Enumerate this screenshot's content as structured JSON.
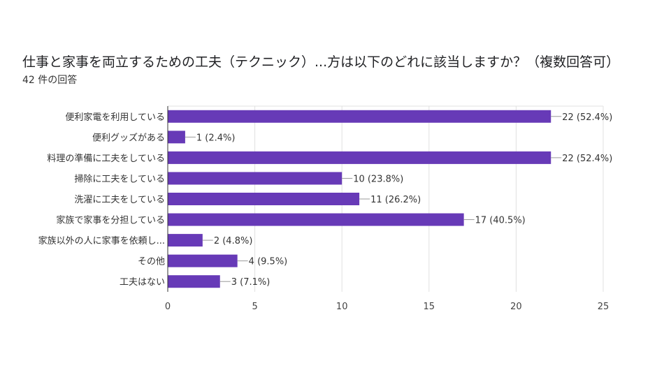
{
  "chart_data": {
    "type": "bar",
    "orientation": "horizontal",
    "title": "仕事と家事を両立するための工夫（テクニック）...方は以下のどれに該当しますか？（複数回答可）",
    "subtitle": "42 件の回答",
    "categories": [
      "便利家電を利用している",
      "便利グッズがある",
      "料理の準備に工夫をしている",
      "掃除に工夫をしている",
      "洗濯に工夫をしている",
      "家族で家事を分担している",
      "家族以外の人に家事を依頼し...",
      "その他",
      "工夫はない"
    ],
    "values": [
      22,
      1,
      22,
      10,
      11,
      17,
      2,
      4,
      3
    ],
    "data_labels": [
      "22 (52.4%)",
      "1 (2.4%)",
      "22 (52.4%)",
      "10 (23.8%)",
      "11 (26.2%)",
      "17 (40.5%)",
      "2 (4.8%)",
      "4 (9.5%)",
      "3 (7.1%)"
    ],
    "xlim": [
      0,
      25
    ],
    "xticks": [
      "0",
      "5",
      "10",
      "15",
      "20",
      "25"
    ],
    "xlabel": "",
    "ylabel": "",
    "grid": true,
    "legend": "none",
    "bar_color": "#673ab7"
  }
}
